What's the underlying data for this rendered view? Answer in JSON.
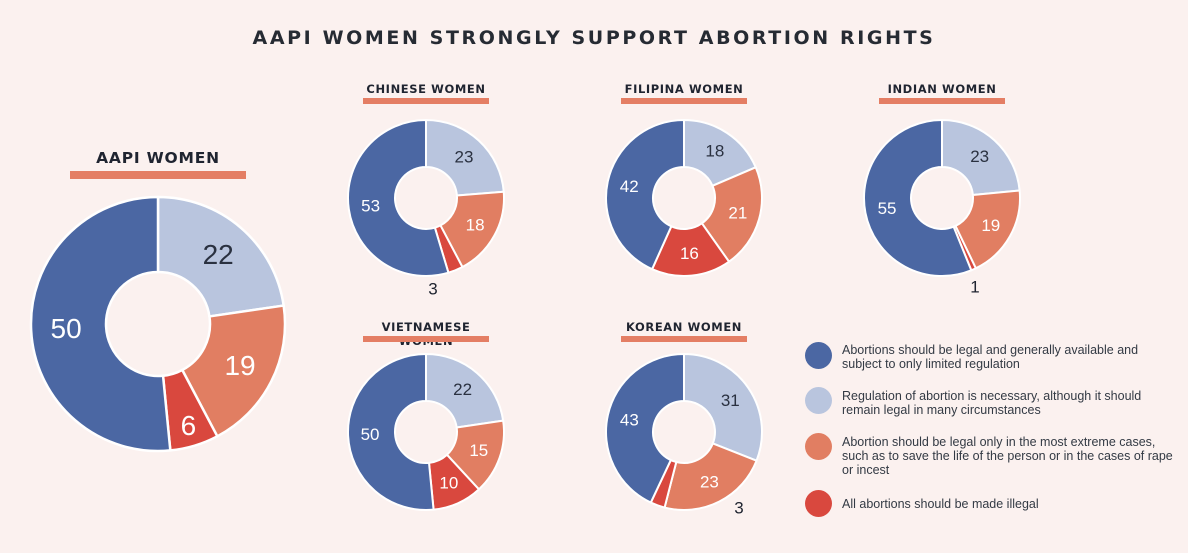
{
  "title": "AAPI WOMEN STRONGLY SUPPORT ABORTION RIGHTS",
  "colors": {
    "legal_generally": "#4b67a3",
    "regulation_necessary": "#b9c5de",
    "extreme_cases_only": "#e17e62",
    "all_illegal": "#d9483e",
    "underline": "#e47e64",
    "background": "#fbf1ef"
  },
  "chart_data": [
    {
      "type": "pie",
      "subtype": "donut",
      "title": "AAPI WOMEN",
      "categories": [
        "Abortions should be legal and generally available and subject to only limited regulation",
        "Regulation of abortion is necessary, although it should remain legal in many circumstances",
        "Abortion should be legal only in the most extreme cases, such as to save the life of the person or in the cases of rape or incest",
        "All abortions should be made illegal"
      ],
      "values": [
        50,
        22,
        19,
        6
      ]
    },
    {
      "type": "pie",
      "subtype": "donut",
      "title": "CHINESE WOMEN",
      "values": [
        53,
        23,
        18,
        3
      ]
    },
    {
      "type": "pie",
      "subtype": "donut",
      "title": "FILIPINA WOMEN",
      "values": [
        42,
        18,
        21,
        16
      ]
    },
    {
      "type": "pie",
      "subtype": "donut",
      "title": "INDIAN WOMEN",
      "values": [
        55,
        23,
        19,
        1
      ]
    },
    {
      "type": "pie",
      "subtype": "donut",
      "title": "VIETNAMESE WOMEN",
      "values": [
        50,
        22,
        15,
        10
      ]
    },
    {
      "type": "pie",
      "subtype": "donut",
      "title": "KOREAN WOMEN",
      "values": [
        43,
        31,
        23,
        3
      ]
    }
  ],
  "legend": [
    {
      "label": "Abortions should be legal and generally available and subject to only limited regulation"
    },
    {
      "label": "Regulation of abortion is necessary, although it should remain legal in many circumstances"
    },
    {
      "label": "Abortion should be legal only in the most extreme cases, such as to save the life of the person or in the cases of rape or incest"
    },
    {
      "label": "All abortions should be made illegal"
    }
  ]
}
